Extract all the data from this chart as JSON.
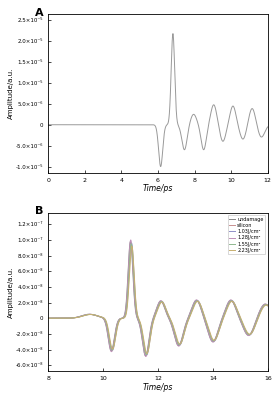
{
  "panel_A": {
    "xlim": [
      0,
      12
    ],
    "ylim": [
      -1.15e-05,
      2.65e-05
    ],
    "yticks": [
      -1e-05,
      -5e-06,
      0.0,
      5e-06,
      1e-05,
      1.5e-05,
      2e-05,
      2.5e-05
    ],
    "ytick_labels": [
      "-1.0×10⁻⁵",
      "-5.0×10⁻⁶",
      "0",
      "5.0×10⁻⁶",
      "1.0×10⁻⁵",
      "1.5×10⁻⁵",
      "2.0×10⁻⁵",
      "2.5×10⁻⁵"
    ],
    "xticks": [
      0,
      2,
      4,
      6,
      8,
      10,
      12
    ],
    "xlabel": "Time/ps",
    "ylabel": "Amplitude/a.u.",
    "label": "A",
    "color": "#999999"
  },
  "panel_B": {
    "xlim": [
      8,
      16
    ],
    "ylim": [
      -6.8e-08,
      1.35e-07
    ],
    "yticks": [
      -6e-08,
      -4e-08,
      -2e-08,
      0.0,
      2e-08,
      4e-08,
      6e-08,
      8e-08,
      1e-07,
      1.2e-07
    ],
    "ytick_labels": [
      "-6.0×10⁻⁸",
      "-4.0×10⁻⁸",
      "-2.0×10⁻⁸",
      "0",
      "2.0×10⁻⁸",
      "4.0×10⁻⁸",
      "6.0×10⁻⁸",
      "8.0×10⁻⁸",
      "1.0×10⁻⁷",
      "1.2×10⁻⁷"
    ],
    "xticks": [
      8,
      10,
      12,
      14,
      16
    ],
    "xlabel": "Time/ps",
    "ylabel": "Amplitude/a.u.",
    "label": "B",
    "legend_labels": [
      "undamage",
      "silicon",
      "1.03J/cm²",
      "1.28J/cm²",
      "1.55J/cm²",
      "2.23J/cm²"
    ],
    "legend_colors": [
      "#888888",
      "#c89090",
      "#9090c8",
      "#c090b8",
      "#90b890",
      "#c8b070"
    ]
  }
}
